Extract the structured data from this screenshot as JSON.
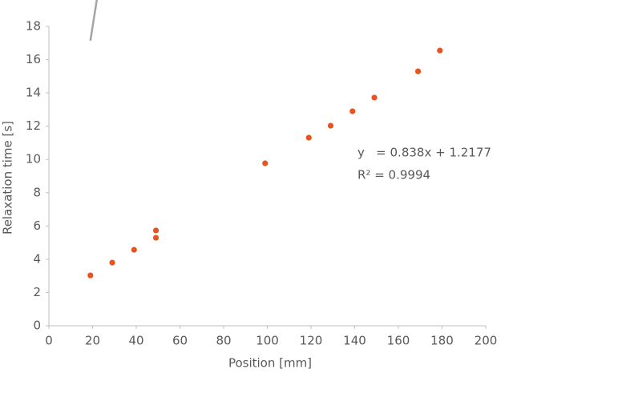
{
  "chart_data": {
    "type": "scatter",
    "x_label": "Position [mm]",
    "y_label": "Relaxation time [s]",
    "series": [
      {
        "color": "#e8541e",
        "x": [
          19,
          29,
          39,
          49,
          49,
          99,
          119,
          129,
          139,
          149,
          169,
          179
        ],
        "values": [
          3.03,
          3.8,
          4.57,
          5.73,
          5.29,
          9.77,
          11.31,
          12.03,
          12.9,
          13.72,
          15.3,
          16.55
        ]
      }
    ],
    "trendline": {
      "slope": 0.838,
      "intercept": 1.2177,
      "color": "#a5a5a5",
      "equation": "y   = 0.838x + 1.2177",
      "r_squared": "R² = 0.9994"
    },
    "xlim": [
      0,
      200
    ],
    "xticks": [
      0,
      20,
      40,
      60,
      80,
      100,
      120,
      140,
      160,
      180,
      200
    ],
    "ylim": [
      0,
      18
    ],
    "yticks": [
      0,
      2,
      4,
      6,
      8,
      10,
      12,
      14,
      16,
      18
    ],
    "grid": false
  }
}
